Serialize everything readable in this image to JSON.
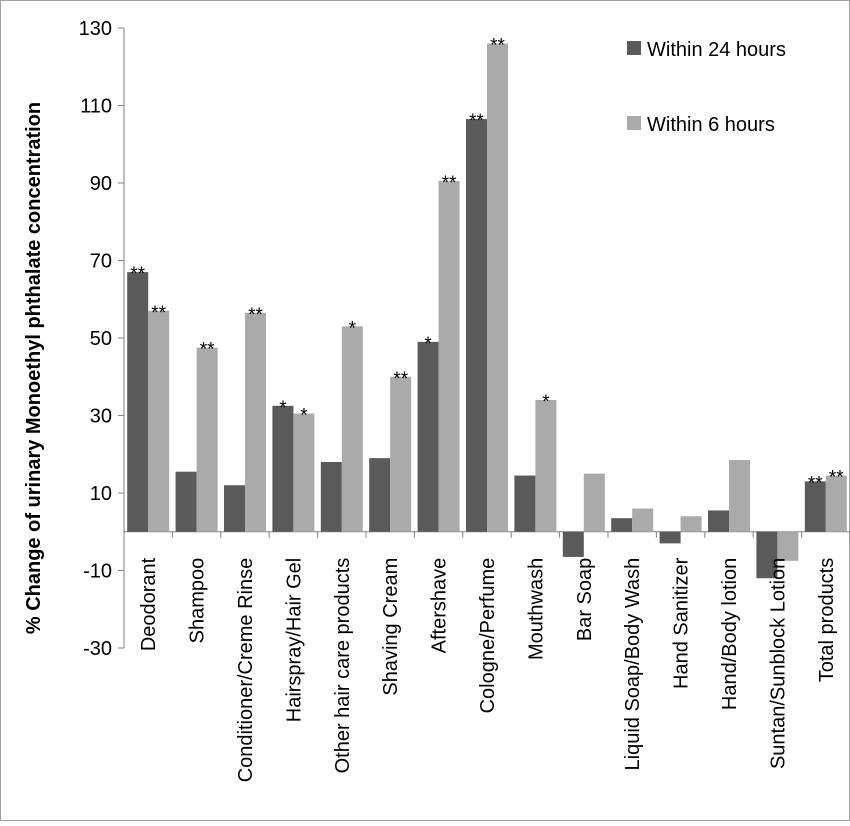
{
  "chart_data": {
    "type": "bar",
    "title": "",
    "xlabel": "",
    "ylabel": "% Change of urinary Monoethyl phthalate concentration",
    "ylim": [
      -30,
      130
    ],
    "yticks": [
      130,
      110,
      90,
      70,
      50,
      30,
      10,
      -10,
      -30
    ],
    "grid": false,
    "legend_position": "top-right",
    "categories": [
      "Deodorant",
      "Shampoo",
      "Conditioner/Creme Rinse",
      "Hairspray/Hair Gel",
      "Other hair care products",
      "Shaving Cream",
      "Aftershave",
      "Cologne/Perfume",
      "Mouthwash",
      "Bar Soap",
      "Liquid Soap/Body Wash",
      "Hand Sanitizer",
      "Hand/Body lotion",
      "Suntan/Sunblock Lotion",
      "Total products"
    ],
    "series": [
      {
        "name": "Within 24 hours",
        "color": "#5a5a5a",
        "values": [
          67,
          15.5,
          12,
          32.5,
          18,
          19,
          49,
          106.5,
          14.5,
          -6.5,
          3.5,
          -3,
          5.5,
          -12,
          13
        ],
        "significance": [
          "**",
          "",
          "",
          "*",
          "",
          "",
          "*",
          "**",
          "",
          "",
          "",
          "",
          "",
          "",
          "**"
        ]
      },
      {
        "name": "Within 6 hours",
        "color": "#aaaaaa",
        "values": [
          57,
          47.5,
          56.5,
          30.5,
          53,
          40,
          90.5,
          126,
          34,
          15,
          6,
          4,
          18.5,
          -7.5,
          14.5
        ],
        "significance": [
          "**",
          "**",
          "**",
          "*",
          "*",
          "**",
          "**",
          "**",
          "*",
          "",
          "",
          "",
          "",
          "",
          "**"
        ]
      }
    ]
  }
}
